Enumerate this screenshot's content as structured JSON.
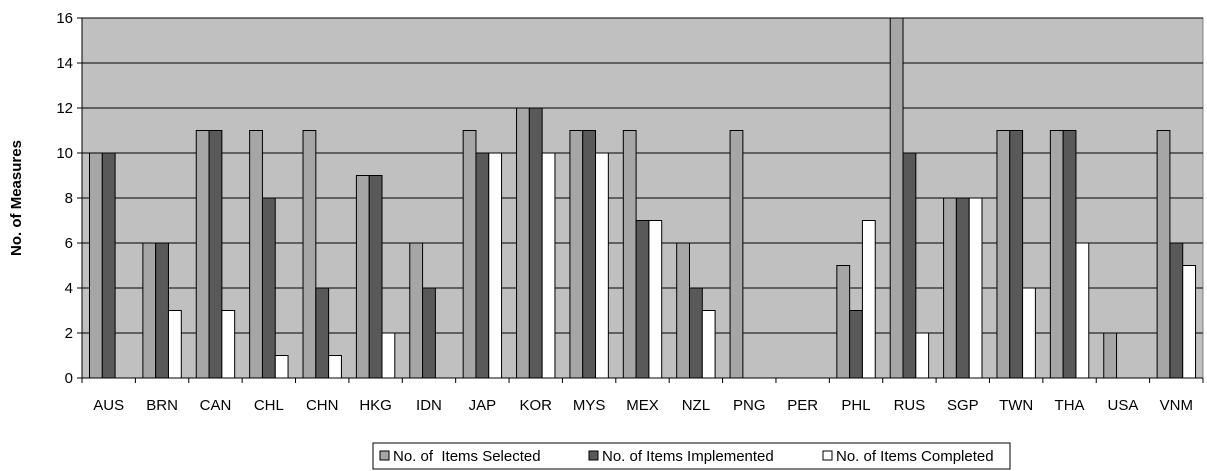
{
  "chart_data": {
    "type": "bar",
    "title": "",
    "xlabel": "",
    "ylabel": "No. of Measures",
    "ylim": [
      0,
      16
    ],
    "yticks": [
      0,
      2,
      4,
      6,
      8,
      10,
      12,
      14,
      16
    ],
    "grid": true,
    "legend_position": "bottom",
    "categories": [
      "AUS",
      "BRN",
      "CAN",
      "CHL",
      "CHN",
      "HKG",
      "IDN",
      "JAP",
      "KOR",
      "MYS",
      "MEX",
      "NZL",
      "PNG",
      "PER",
      "PHL",
      "RUS",
      "SGP",
      "TWN",
      "THA",
      "USA",
      "VNM"
    ],
    "series": [
      {
        "name": "No. of  Items Selected",
        "color": "#a6a6a6",
        "values": [
          10,
          6,
          11,
          11,
          11,
          9,
          6,
          11,
          12,
          11,
          11,
          6,
          11,
          0,
          5,
          16,
          8,
          11,
          11,
          2,
          11
        ]
      },
      {
        "name": "No. of Items Implemented",
        "color": "#595959",
        "values": [
          10,
          6,
          11,
          8,
          4,
          9,
          4,
          10,
          12,
          11,
          7,
          4,
          0,
          0,
          3,
          10,
          8,
          11,
          11,
          0,
          6
        ]
      },
      {
        "name": "No. of Items Completed",
        "color": "#ffffff",
        "values": [
          0,
          3,
          3,
          1,
          1,
          2,
          0,
          10,
          10,
          10,
          7,
          3,
          0,
          0,
          7,
          2,
          8,
          4,
          6,
          0,
          5
        ]
      }
    ],
    "plot_background": "#c0c0c0"
  }
}
